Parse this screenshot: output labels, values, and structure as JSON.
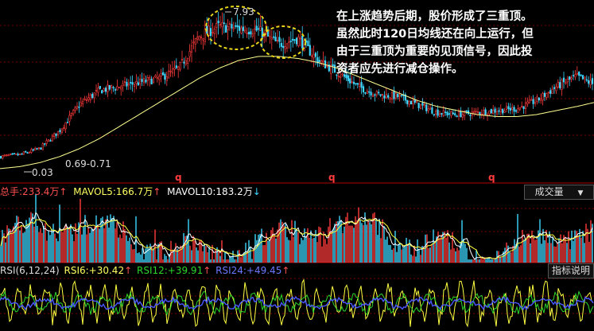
{
  "annotation": {
    "lines": [
      "在上涨趋势后期，股价形成了三重顶。",
      "虽然此时120日均线还在向上运行，但",
      "由于三重顶为重要的见顶信号，因此投",
      "资者应先进行减仓操作。"
    ]
  },
  "price_labels": {
    "high": "7.93",
    "low": "0.03",
    "mid": "0.69",
    "mid2": "0.71"
  },
  "q_markers": [
    "q",
    "q",
    "q"
  ],
  "volume_legend": {
    "total_label": "总手:",
    "total_value": "233.4万",
    "mavol5_label": "MAVOL5:",
    "mavol5_value": "166.7万",
    "mavol10_label": "MAVOL10:",
    "mavol10_value": "183.2万",
    "dropdown": "成交量"
  },
  "rsi_legend": {
    "title": "RSI(6,12,24)",
    "rsi6_label": "RSI6:",
    "rsi6_value": "+30.42",
    "rsi12_label": "RSI12:",
    "rsi12_value": "+39.91",
    "rsi24_label": "RSI24:",
    "rsi24_value": "+49.45",
    "help_button": "指标说明"
  },
  "colors": {
    "up": "#ff3b3b",
    "down": "#3cd7ff",
    "ma": "#ffff90",
    "rsi6": "#ffff40",
    "rsi12": "#2bd62b",
    "rsi24": "#4a58ff",
    "grid": "#8b0000",
    "circle": "#e8d51a"
  },
  "chart_data": [
    {
      "type": "line",
      "name": "candlestick-price",
      "x": [
        0,
        25,
        50,
        75,
        100,
        125,
        150,
        175,
        200,
        225,
        250,
        275,
        300,
        325,
        350,
        375,
        400,
        425,
        450,
        475,
        500,
        525,
        550,
        575,
        600,
        625,
        650,
        675,
        700,
        725,
        747
      ],
      "close": [
        1.0,
        1.1,
        1.4,
        2.3,
        3.6,
        4.3,
        4.5,
        4.7,
        4.9,
        5.4,
        7.0,
        7.5,
        7.4,
        7.3,
        6.6,
        6.9,
        5.8,
        5.2,
        4.5,
        4.1,
        4.0,
        3.6,
        3.2,
        3.1,
        3.2,
        3.3,
        3.4,
        3.8,
        4.5,
        5.0,
        4.6
      ],
      "ma120": [
        0.4,
        0.5,
        0.7,
        1.0,
        1.4,
        1.9,
        2.5,
        3.1,
        3.7,
        4.3,
        4.9,
        5.4,
        5.8,
        6.0,
        6.0,
        5.9,
        5.7,
        5.4,
        5.0,
        4.6,
        4.2,
        3.8,
        3.5,
        3.3,
        3.1,
        3.0,
        3.0,
        3.1,
        3.3,
        3.5,
        3.7
      ],
      "ylim": [
        0,
        8.5
      ]
    },
    {
      "type": "bar",
      "name": "volume",
      "ylim": [
        0,
        400
      ]
    },
    {
      "type": "line",
      "name": "rsi",
      "ylim": [
        0,
        100
      ]
    }
  ]
}
